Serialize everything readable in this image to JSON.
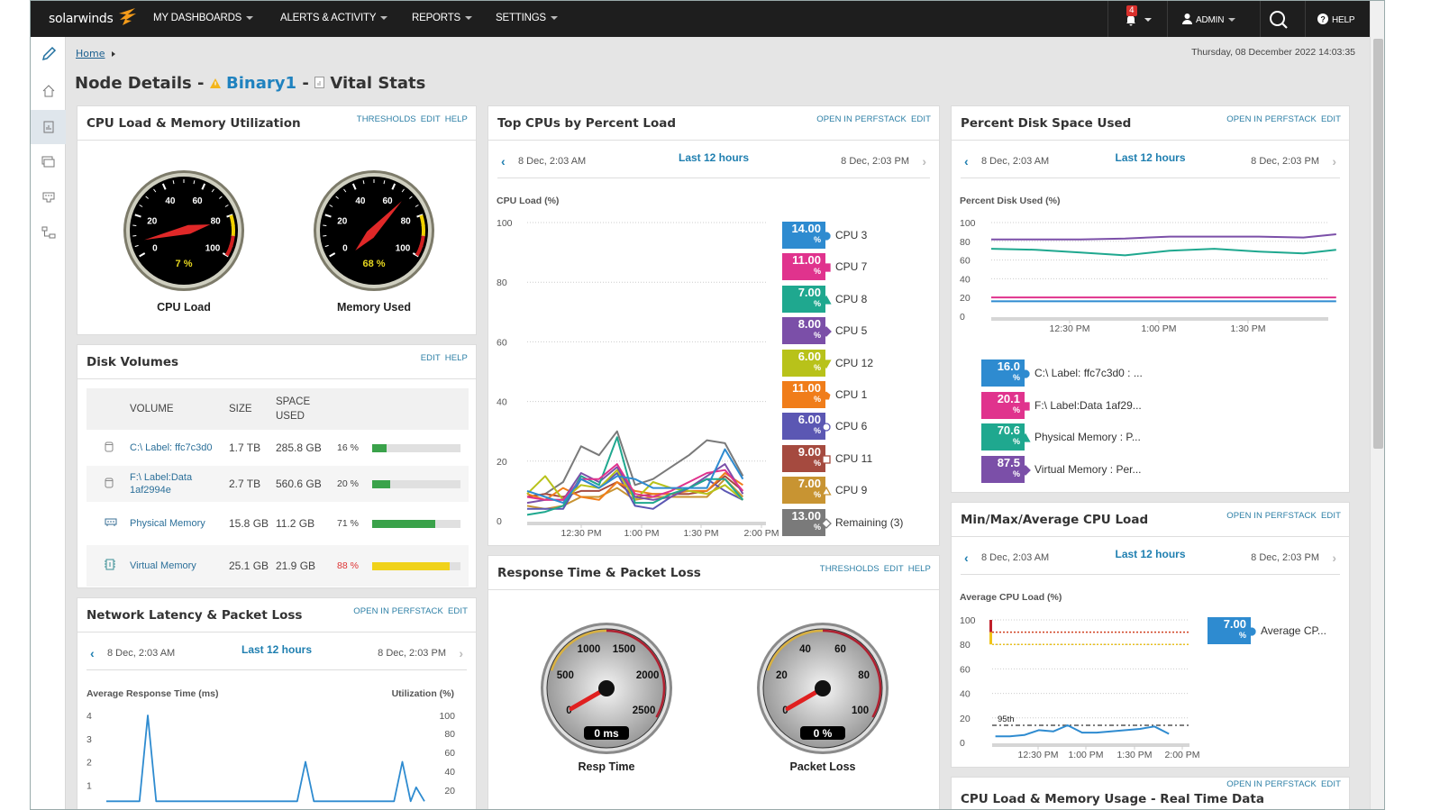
{
  "nav": {
    "logo": "solarwinds",
    "items": [
      "MY DASHBOARDS",
      "ALERTS & ACTIVITY",
      "REPORTS",
      "SETTINGS"
    ],
    "alert_count": "4",
    "user": "ADMIN",
    "help": "HELP"
  },
  "sidebar": {
    "items": [
      "edit-icon",
      "home-icon",
      "report-icon",
      "monitor-icon",
      "network-card-icon",
      "topology-icon"
    ],
    "selected": 2
  },
  "breadcrumb": {
    "home": "Home"
  },
  "datetime": "Thursday, 08 December 2022 14:03:35",
  "page": {
    "prefix": "Node Details -",
    "node": "Binary1",
    "sep": "-",
    "view": "Vital Stats"
  },
  "time_nav": {
    "start": "8 Dec, 2:03 AM",
    "range": "Last 12 hours",
    "end": "8 Dec, 2:03 PM"
  },
  "colors": {
    "accent": "#1f7fb0",
    "nav_bg": "#1e1e1e",
    "warning": "#f0c419",
    "critical": "#c0202a"
  },
  "cpu_mem": {
    "title": "CPU Load & Memory Utilization",
    "links": [
      "THRESHOLDS",
      "EDIT",
      "HELP"
    ],
    "gauges": [
      {
        "label": "CPU Load",
        "value": 7,
        "display": "7 %",
        "ticks": [
          "0",
          "20",
          "40",
          "60",
          "80",
          "100"
        ],
        "max": 100
      },
      {
        "label": "Memory Used",
        "value": 68,
        "display": "68 %",
        "ticks": [
          "0",
          "20",
          "40",
          "60",
          "80",
          "100"
        ],
        "max": 100
      }
    ]
  },
  "disk_volumes": {
    "title": "Disk Volumes",
    "links": [
      "EDIT",
      "HELP"
    ],
    "headers": [
      "VOLUME",
      "SIZE",
      "SPACE USED"
    ],
    "rows": [
      {
        "icon": "disk-icon",
        "volume": "C:\\ Label: ffc7c3d0",
        "size": "1.7 TB",
        "used": "285.8 GB",
        "pct": "16 %",
        "fill": 16,
        "status": "ok"
      },
      {
        "icon": "disk-icon",
        "volume": "F:\\ Label:Data 1af2994e",
        "size": "2.7 TB",
        "used": "560.6 GB",
        "pct": "20 %",
        "fill": 20,
        "status": "ok"
      },
      {
        "icon": "ram-icon",
        "volume": "Physical Memory",
        "size": "15.8 GB",
        "used": "11.2 GB",
        "pct": "71 %",
        "fill": 71,
        "status": "ok"
      },
      {
        "icon": "virtual-memory-icon",
        "volume": "Virtual Memory",
        "size": "25.1 GB",
        "used": "21.9 GB",
        "pct": "88 %",
        "fill": 88,
        "status": "warning"
      }
    ]
  },
  "network": {
    "title": "Network Latency & Packet Loss",
    "links": [
      "OPEN IN PERFSTACK",
      "EDIT"
    ],
    "ylabel_left": "Average Response Time (ms)",
    "ylabel_right": "Utilization (%)"
  },
  "top_cpus": {
    "title": "Top CPUs by Percent Load",
    "links": [
      "OPEN IN PERFSTACK",
      "EDIT"
    ]
  },
  "response": {
    "title": "Response Time & Packet Loss",
    "links": [
      "THRESHOLDS",
      "EDIT",
      "HELP"
    ],
    "gauges": [
      {
        "label": "Resp Time",
        "value": 0,
        "display": "0 ms",
        "ticks": [
          "0",
          "500",
          "1000",
          "1500",
          "2000",
          "2500"
        ],
        "max": 2500
      },
      {
        "label": "Packet Loss",
        "value": 0,
        "display": "0 %",
        "ticks": [
          "0",
          "20",
          "40",
          "60",
          "80",
          "100"
        ],
        "max": 100
      }
    ]
  },
  "disk_space": {
    "title": "Percent Disk Space Used",
    "links": [
      "OPEN IN PERFSTACK",
      "EDIT"
    ]
  },
  "minmax": {
    "title": "Min/Max/Average CPU Load",
    "links": [
      "OPEN IN PERFSTACK",
      "EDIT"
    ]
  },
  "realtime": {
    "title": "CPU Load & Memory Usage - Real Time Data",
    "links": [
      "OPEN IN PERFSTACK",
      "EDIT"
    ]
  },
  "chart_data": [
    {
      "id": "top_cpus",
      "type": "line",
      "ylabel": "CPU Load (%)",
      "ylim": [
        0,
        100
      ],
      "yticks": [
        0,
        20,
        40,
        60,
        80,
        100
      ],
      "xticks": [
        "12:30 PM",
        "1:00 PM",
        "1:30 PM",
        "2:00 PM"
      ],
      "grid": true,
      "legend": "right",
      "x": [
        "12:03",
        "12:12",
        "12:21",
        "12:30",
        "12:39",
        "12:48",
        "12:57",
        "13:06",
        "13:15",
        "13:24",
        "13:33",
        "13:42",
        "13:51"
      ],
      "series": [
        {
          "name": "CPU 3",
          "current": "14.00",
          "color": "#2e8bd0",
          "marker": "circle",
          "values": [
            10,
            8,
            6,
            14,
            11,
            15,
            14,
            11,
            11,
            11,
            11,
            24,
            14
          ]
        },
        {
          "name": "CPU 7",
          "current": "11.00",
          "color": "#e0338d",
          "marker": "square",
          "values": [
            8,
            7,
            7,
            14,
            14,
            19,
            9,
            8,
            10,
            13,
            16,
            17,
            10
          ]
        },
        {
          "name": "CPU 8",
          "current": "7.00",
          "color": "#1fa88f",
          "marker": "triangle",
          "values": [
            2,
            3,
            5,
            15,
            12,
            28,
            6,
            6,
            9,
            11,
            14,
            14,
            7
          ]
        },
        {
          "name": "CPU 5",
          "current": "8.00",
          "color": "#7b4fa8",
          "marker": "diamond",
          "values": [
            6,
            7,
            7,
            16,
            13,
            18,
            8,
            7,
            8,
            11,
            15,
            19,
            9
          ]
        },
        {
          "name": "CPU 12",
          "current": "6.00",
          "color": "#b8c21a",
          "marker": "triangle-down",
          "values": [
            9,
            15,
            7,
            12,
            11,
            17,
            7,
            13,
            11,
            10,
            9,
            12,
            7
          ]
        },
        {
          "name": "CPU 1",
          "current": "11.00",
          "color": "#f07d1a",
          "marker": "pentagon",
          "values": [
            9,
            7,
            11,
            8,
            7,
            13,
            10,
            9,
            9,
            10,
            10,
            16,
            12
          ]
        },
        {
          "name": "CPU 6",
          "current": "6.00",
          "color": "#5b57b3",
          "marker": "circle-open",
          "values": [
            4,
            4,
            4,
            14,
            11,
            16,
            5,
            4,
            8,
            11,
            14,
            10,
            7
          ]
        },
        {
          "name": "CPU 11",
          "current": "9.00",
          "color": "#a54a3f",
          "marker": "square-open",
          "values": [
            8,
            9,
            8,
            10,
            10,
            13,
            8,
            9,
            9,
            9,
            10,
            15,
            10
          ]
        },
        {
          "name": "CPU 9",
          "current": "7.00",
          "color": "#c89432",
          "marker": "triangle-open",
          "values": [
            5,
            4,
            5,
            8,
            8,
            11,
            7,
            8,
            8,
            8,
            8,
            14,
            8
          ]
        },
        {
          "name": "Remaining (3)",
          "current": "13.00",
          "color": "#7a7a7a",
          "marker": "diamond-open",
          "values": [
            8,
            9,
            13,
            25,
            22,
            30,
            12,
            14,
            18,
            22,
            27,
            26,
            15
          ]
        }
      ]
    },
    {
      "id": "disk_space",
      "type": "line",
      "ylabel": "Percent Disk Used (%)",
      "ylim": [
        0,
        100
      ],
      "yticks": [
        0,
        20,
        40,
        60,
        80,
        100
      ],
      "xticks": [
        "12:30 PM",
        "1:00 PM",
        "1:30 PM"
      ],
      "grid": true,
      "legend": "bottom",
      "x": [
        "12:04",
        "12:19",
        "12:34",
        "12:49",
        "13:04",
        "13:19",
        "13:34",
        "13:49",
        "14:00"
      ],
      "series": [
        {
          "name": "C:\\ Label: ffc7c3d0 : ...",
          "current": "16.0",
          "color": "#2e8bd0",
          "marker": "circle",
          "values": [
            16,
            16,
            16,
            16,
            16,
            16,
            16,
            16,
            16
          ]
        },
        {
          "name": "F:\\ Label:Data 1af29...",
          "current": "20.1",
          "color": "#e0338d",
          "marker": "square",
          "values": [
            20.1,
            20.1,
            20.1,
            20.1,
            20.1,
            20.1,
            20.1,
            20.1,
            20.1
          ]
        },
        {
          "name": "Physical Memory : P...",
          "current": "70.6",
          "color": "#1fa88f",
          "marker": "triangle",
          "values": [
            72,
            71,
            68,
            65,
            70,
            72,
            69,
            67,
            71
          ]
        },
        {
          "name": "Virtual Memory : Per...",
          "current": "87.5",
          "color": "#7b4fa8",
          "marker": "diamond",
          "values": [
            82,
            82,
            82,
            83,
            85,
            85,
            85,
            84,
            87.5
          ]
        }
      ]
    },
    {
      "id": "minmax",
      "type": "line",
      "ylabel": "Average CPU Load (%)",
      "ylim": [
        0,
        100
      ],
      "yticks": [
        0,
        20,
        40,
        60,
        80,
        100
      ],
      "xticks": [
        "12:30 PM",
        "1:00 PM",
        "1:30 PM",
        "2:00 PM"
      ],
      "grid": true,
      "legend": "right",
      "thresholds": {
        "warning": 80,
        "critical": 90
      },
      "percentile": {
        "label": "95th",
        "value": 14
      },
      "x": [
        "12:03",
        "12:12",
        "12:21",
        "12:30",
        "12:39",
        "12:48",
        "12:57",
        "13:06",
        "13:15",
        "13:24",
        "13:33",
        "13:42",
        "13:51"
      ],
      "series": [
        {
          "name": "Average CP...",
          "current": "7.00",
          "color": "#2e8bd0",
          "marker": "circle",
          "values": [
            5,
            5,
            6,
            10,
            9,
            14,
            8,
            8,
            9,
            10,
            11,
            13,
            7
          ]
        }
      ]
    },
    {
      "id": "network",
      "type": "line",
      "ylabel": "Average Response Time (ms)",
      "y2label": "Utilization (%)",
      "ylim": [
        0,
        4
      ],
      "yticks": [
        1,
        2,
        3,
        4
      ],
      "y2ticks": [
        20,
        40,
        60,
        80,
        100
      ],
      "grid": false,
      "x": [
        "12:03",
        "12:15",
        "12:18",
        "12:21",
        "13:12",
        "13:15",
        "13:18",
        "13:47",
        "13:50",
        "13:53",
        "13:55",
        "13:58"
      ],
      "series": [
        {
          "color": "#2e8bd0",
          "values": [
            0.3,
            0.3,
            4,
            0.3,
            0.3,
            2,
            0.3,
            0.3,
            2,
            0.3,
            0.9,
            0.3
          ]
        }
      ]
    }
  ]
}
